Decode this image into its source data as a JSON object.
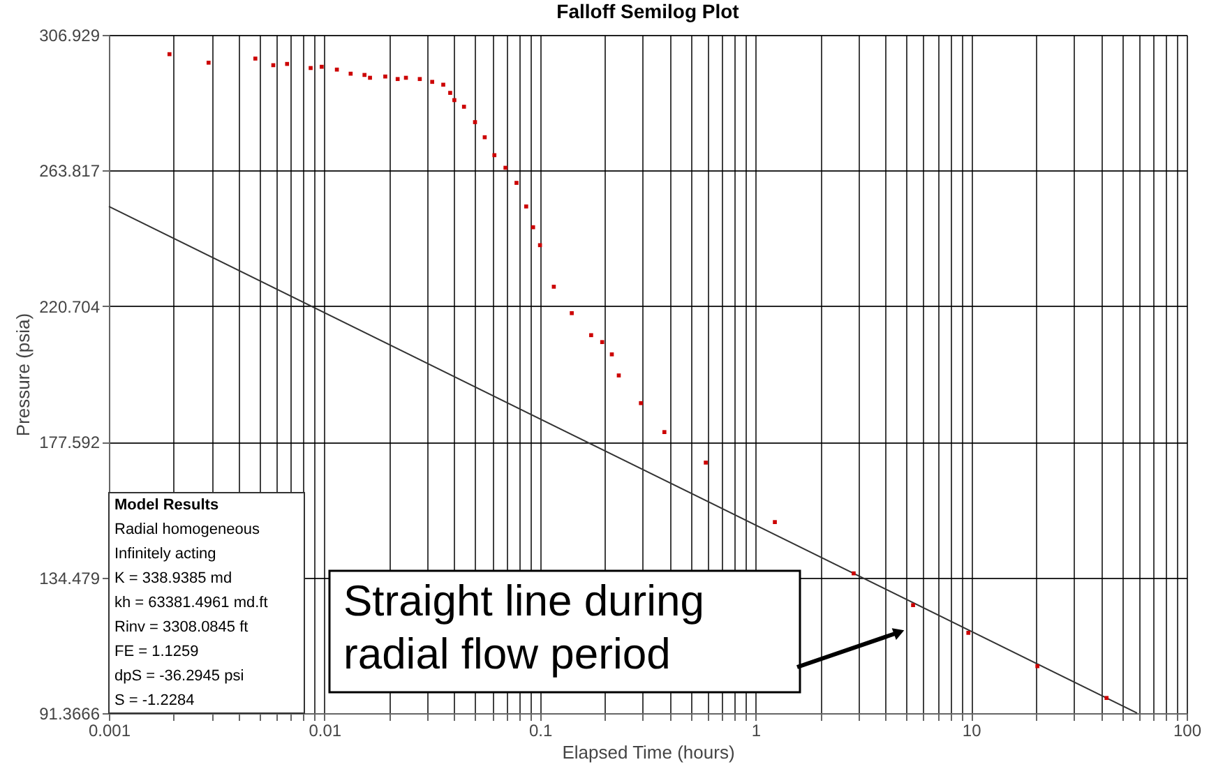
{
  "chart_data": {
    "type": "scatter",
    "title": "Falloff Semilog Plot",
    "xlabel": "Elapsed Time (hours)",
    "ylabel": "Pressure (psia)",
    "log": "x",
    "grid": true,
    "marker": "square",
    "xlim": [
      0.001,
      100
    ],
    "ylim": [
      91.3666,
      306.929
    ],
    "xticks": [
      0.001,
      {
        "value": 0.002,
        "label": null
      },
      {
        "value": 0.003,
        "label": null
      },
      {
        "value": 0.004,
        "label": null
      },
      {
        "value": 0.005,
        "label": null
      },
      {
        "value": 0.006,
        "label": null
      },
      {
        "value": 0.007,
        "label": null
      },
      {
        "value": 0.008,
        "label": null
      },
      {
        "value": 0.009,
        "label": null
      },
      0.01,
      {
        "value": 0.02,
        "label": null
      },
      {
        "value": 0.03,
        "label": null
      },
      {
        "value": 0.04,
        "label": null
      },
      {
        "value": 0.05,
        "label": null
      },
      {
        "value": 0.06,
        "label": null
      },
      {
        "value": 0.07,
        "label": null
      },
      {
        "value": 0.08,
        "label": null
      },
      {
        "value": 0.09,
        "label": null
      },
      0.1,
      {
        "value": 0.2,
        "label": null
      },
      {
        "value": 0.3,
        "label": null
      },
      {
        "value": 0.4,
        "label": null
      },
      {
        "value": 0.5,
        "label": null
      },
      {
        "value": 0.6,
        "label": null
      },
      {
        "value": 0.7,
        "label": null
      },
      {
        "value": 0.8,
        "label": null
      },
      {
        "value": 0.9,
        "label": null
      },
      1,
      {
        "value": 2,
        "label": null
      },
      {
        "value": 3,
        "label": null
      },
      {
        "value": 4,
        "label": null
      },
      {
        "value": 5,
        "label": null
      },
      {
        "value": 6,
        "label": null
      },
      {
        "value": 7,
        "label": null
      },
      {
        "value": 8,
        "label": null
      },
      {
        "value": 9,
        "label": null
      },
      10,
      {
        "value": 20,
        "label": null
      },
      {
        "value": 30,
        "label": null
      },
      {
        "value": 40,
        "label": null
      },
      {
        "value": 50,
        "label": null
      },
      {
        "value": 60,
        "label": null
      },
      {
        "value": 70,
        "label": null
      },
      {
        "value": 80,
        "label": null
      },
      {
        "value": 90,
        "label": null
      },
      100
    ],
    "yticks": [
      91.3666,
      134.479,
      177.592,
      220.704,
      263.817,
      306.929
    ],
    "series": [
      {
        "type": "scatter",
        "color": "#cc0000",
        "x": [
          0.00191,
          0.0029,
          0.00478,
          0.00579,
          0.00671,
          0.00863,
          0.00971,
          0.01142,
          0.01323,
          0.01534,
          0.01627,
          0.01915,
          0.02186,
          0.02388,
          0.02769,
          0.03162,
          0.03558,
          0.03831,
          0.04005,
          0.0444,
          0.04995,
          0.0554,
          0.06143,
          0.06915,
          0.0778,
          0.08628,
          0.09289,
          0.1,
          0.1159,
          0.1404,
          0.1727,
          0.1943,
          0.2154,
          0.232,
          0.2938,
          0.3776,
          0.5876,
          1.229,
          2.852,
          5.38,
          9.71,
          20.3,
          42.5
        ],
        "values": [
          300.8,
          298.1,
          299.4,
          297.3,
          297.7,
          296.4,
          296.8,
          295.9,
          294.6,
          294.2,
          293.3,
          293.7,
          292.9,
          293.3,
          292.9,
          292.0,
          291.1,
          288.5,
          286.2,
          284.1,
          279.2,
          274.4,
          268.7,
          264.7,
          259.9,
          252.4,
          245.8,
          240.1,
          226.9,
          218.5,
          211.5,
          209.3,
          205.4,
          198.7,
          189.9,
          180.7,
          171.0,
          152.1,
          135.8,
          125.7,
          116.9,
          106.3,
          96.2
        ]
      },
      {
        "type": "line",
        "marker": "none",
        "color": "#333333",
        "x": [
          0.001,
          58.9
        ],
        "values": [
          252.4,
          91.4
        ]
      }
    ],
    "annotations": [
      "Straight line during\nradial flow period",
      "Model Results",
      "Radial homogeneous",
      "Infinitely acting",
      "K = 338.9385 md",
      "kh = 63381.4961 md.ft",
      "Rinv = 3308.0845 ft",
      "FE = 1.1259",
      "dpS = -36.2945 psi",
      "S = -1.2284"
    ]
  }
}
